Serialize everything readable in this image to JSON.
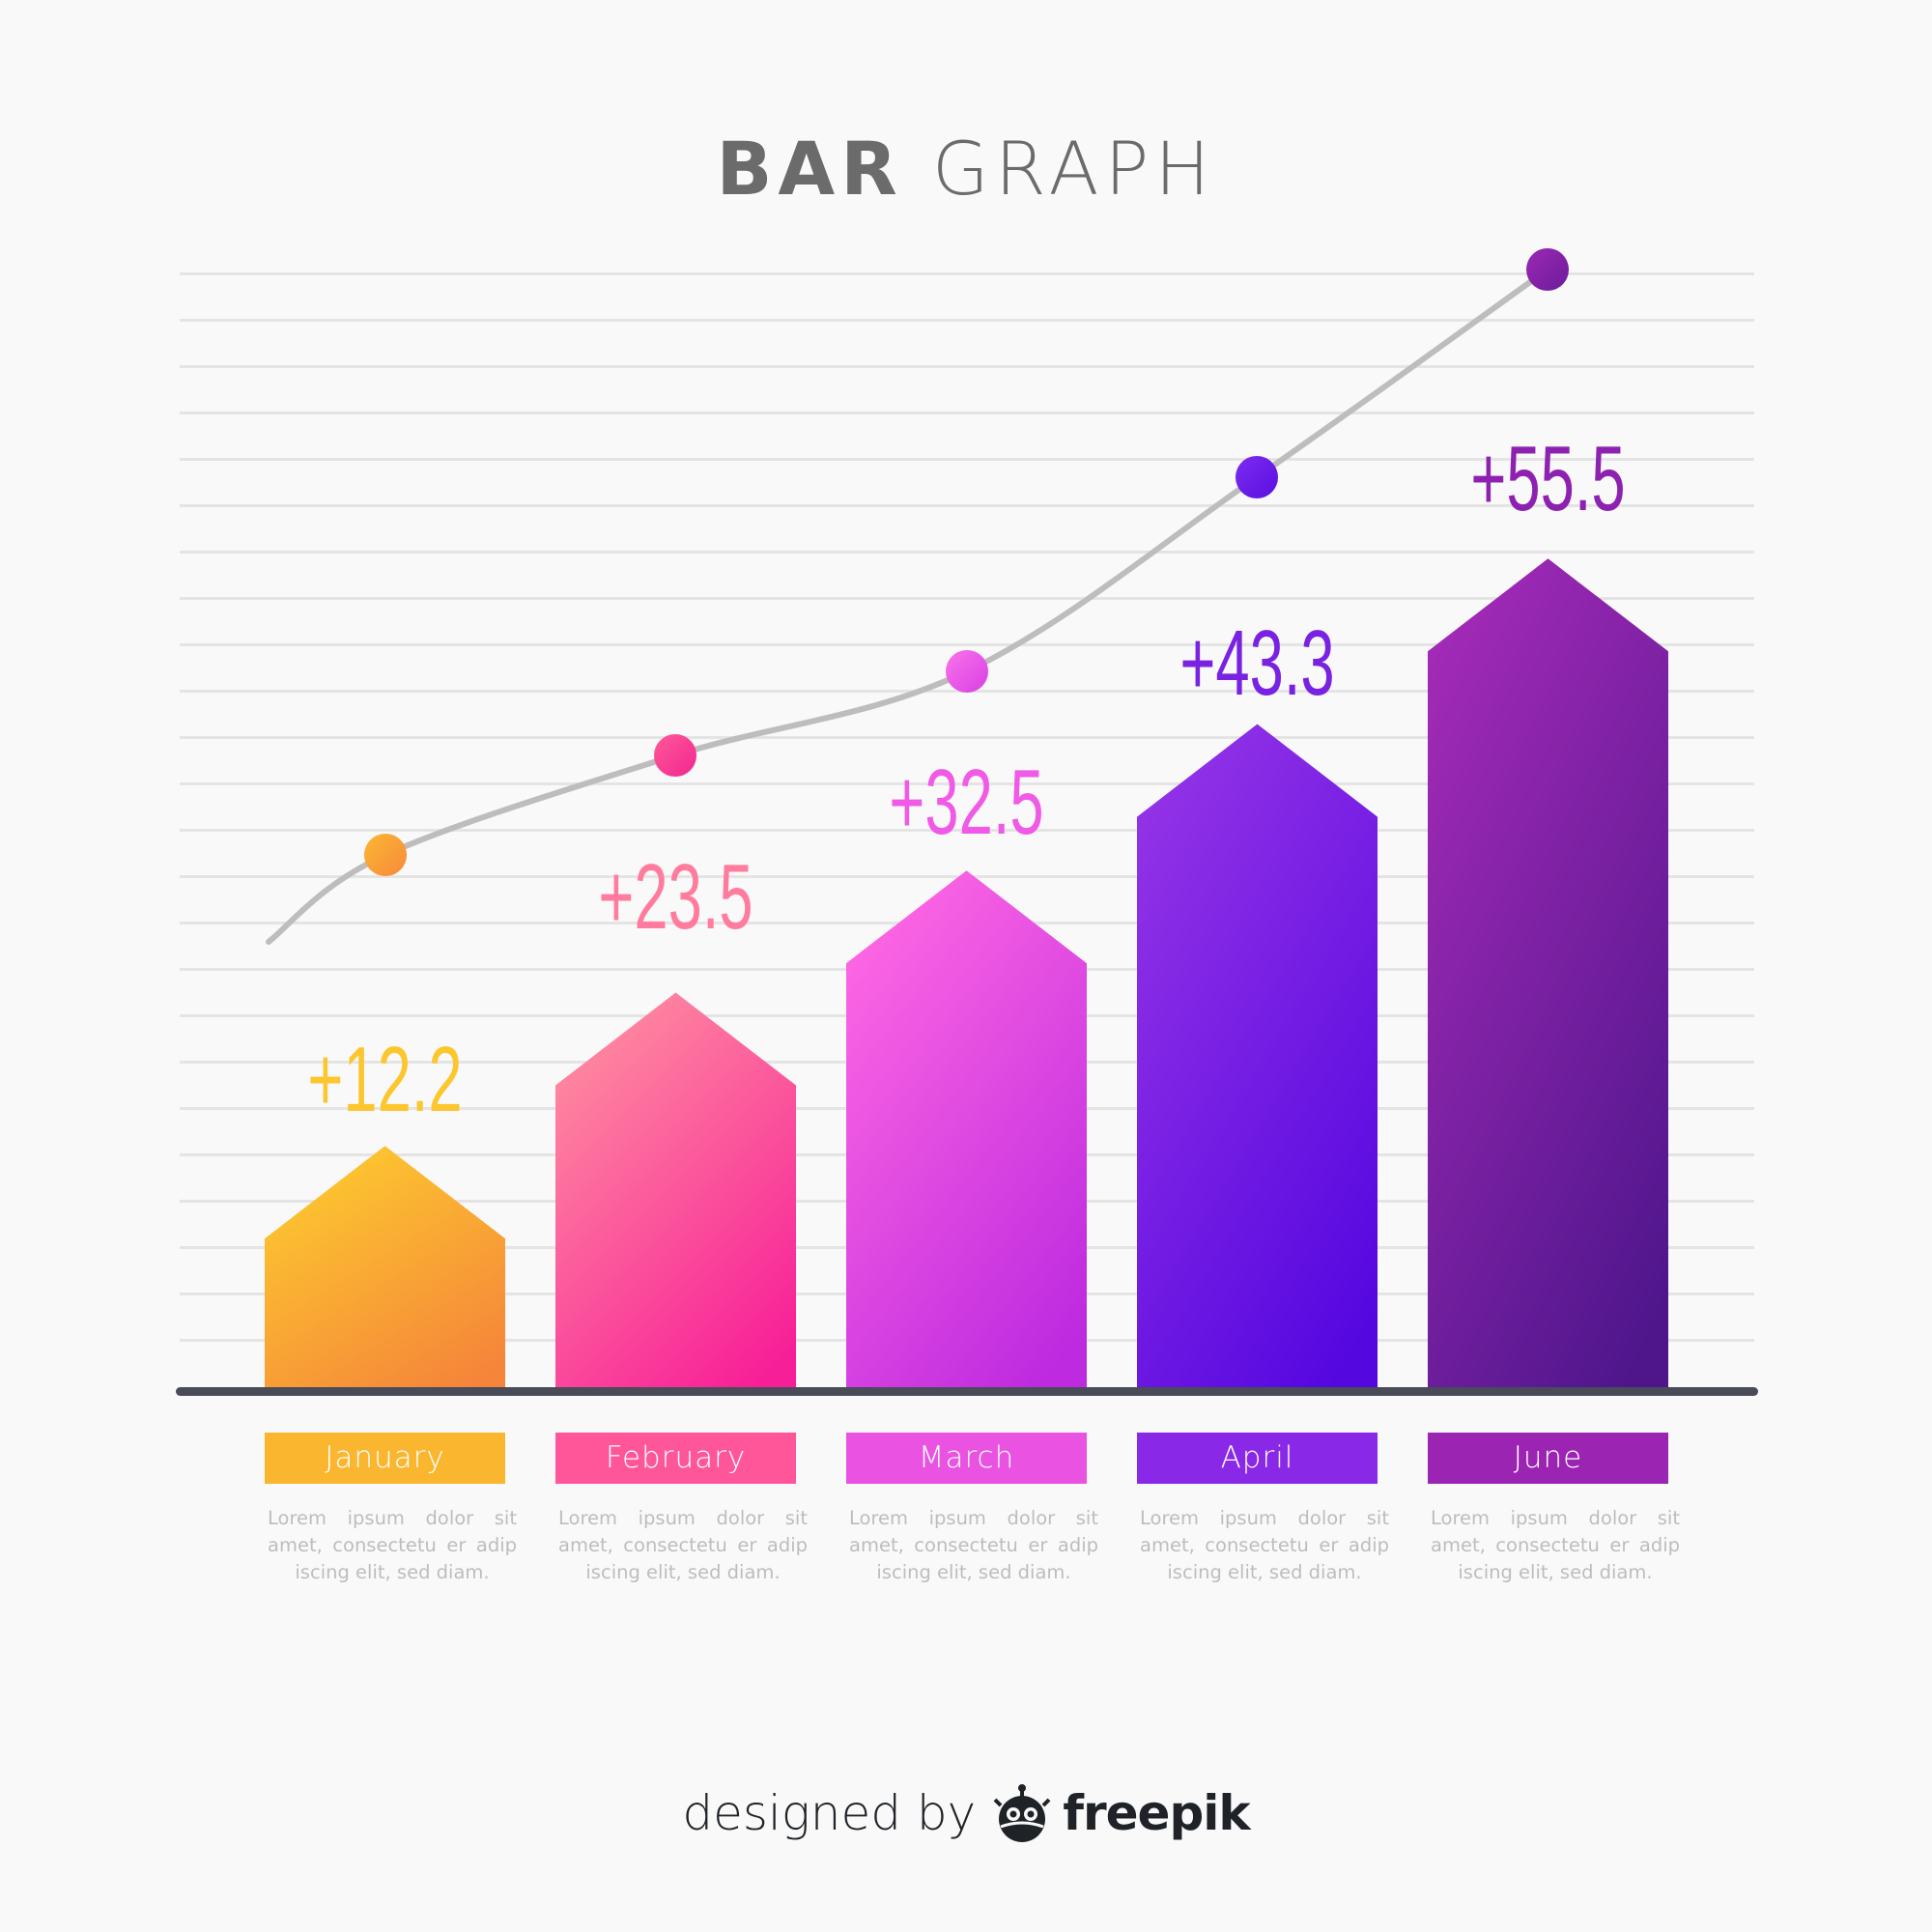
{
  "title": {
    "bold": "BAR",
    "light": "GRAPH"
  },
  "chart_data": {
    "type": "bar",
    "categories": [
      "January",
      "February",
      "March",
      "April",
      "June"
    ],
    "values": [
      12.2,
      23.5,
      32.5,
      43.3,
      55.5
    ],
    "value_labels": [
      "+12.2",
      "+23.5",
      "+32.5",
      "+43.3",
      "+55.5"
    ],
    "overlay": "trend line with markers",
    "grid": true,
    "bar_colors": [
      [
        "#fdcb2f",
        "#f5853a"
      ],
      [
        "#ff8ea0",
        "#f71f98"
      ],
      [
        "#ff68e2",
        "#bd2ae0"
      ],
      [
        "#9333e6",
        "#5507e0"
      ],
      [
        "#a22ab6",
        "#4f168c"
      ]
    ],
    "label_colors": [
      "#fbb630",
      "#fe5699",
      "#ea52e2",
      "#8a28e8",
      "#9b25b2"
    ],
    "value_colors": [
      "#fcc62f",
      "#ff7c9e",
      "#f05ae6",
      "#7a22e2",
      "#8e22b0"
    ],
    "dot_colors": [
      [
        "#fcb733",
        "#f68a3a"
      ],
      [
        "#ff5a9a",
        "#f2258e"
      ],
      [
        "#f974ec",
        "#d83fe2"
      ],
      [
        "#7d2cf0",
        "#5a0fe0"
      ],
      [
        "#9a2ab5",
        "#6e1a9a"
      ]
    ]
  },
  "descriptions": [
    "Lorem ipsum dolor sit amet, consectetu er adip iscing elit, sed diam.",
    "Lorem ipsum dolor sit amet, consectetu er adip iscing elit, sed diam.",
    "Lorem ipsum dolor sit amet, consectetu er adip iscing elit, sed diam.",
    "Lorem ipsum dolor sit amet, consectetu er adip iscing elit, sed diam.",
    "Lorem ipsum dolor sit amet, consectetu er adip iscing elit, sed diam."
  ],
  "footer": {
    "designed_by": "designed by",
    "brand": "freepik"
  }
}
